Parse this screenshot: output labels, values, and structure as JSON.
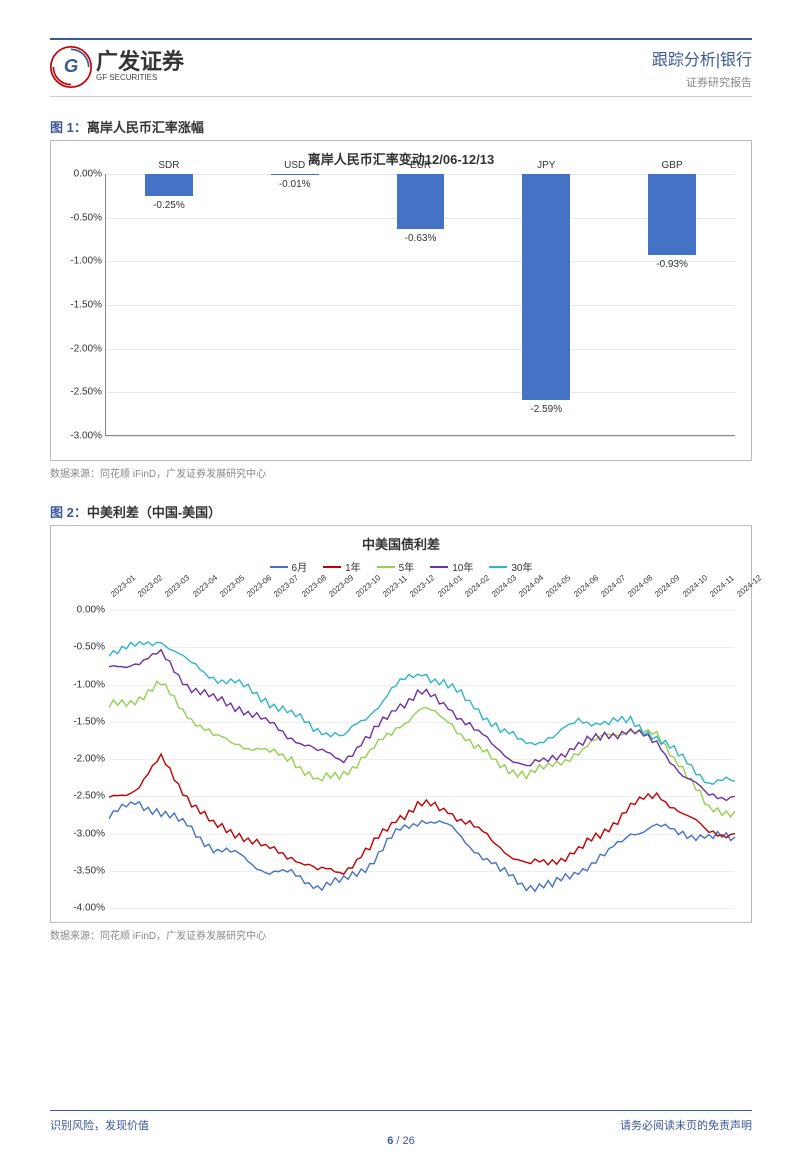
{
  "header": {
    "logo_cn": "广发证券",
    "logo_en": "GF SECURITIES",
    "title": "跟踪分析|银行",
    "subtitle": "证券研究报告"
  },
  "figure1": {
    "title_prefix": "图 1：",
    "title": "离岸人民币汇率涨幅",
    "chart_title": "离岸人民币汇率变动12/06-12/13",
    "categories": [
      "SDR",
      "USD",
      "EUR",
      "JPY",
      "GBP"
    ],
    "values": [
      -0.25,
      -0.01,
      -0.63,
      -2.59,
      -0.93
    ],
    "value_labels": [
      "-0.25%",
      "-0.01%",
      "-0.63%",
      "-2.59%",
      "-0.93%"
    ],
    "bar_color": "#4472c4",
    "y_ticks": [
      "0.00%",
      "-0.50%",
      "-1.00%",
      "-1.50%",
      "-2.00%",
      "-2.50%",
      "-3.00%"
    ],
    "y_min": -3.0,
    "y_max": 0.0,
    "source": "数据来源：同花顺 iFinD，广发证券发展研究中心",
    "grid_color": "#e6e6e6",
    "background_color": "#ffffff"
  },
  "figure2": {
    "title_prefix": "图 2：",
    "title": "中美利差（中国-美国）",
    "chart_title": "中美国债利差",
    "series": [
      {
        "name": "6月",
        "color": "#4472c4"
      },
      {
        "name": "1年",
        "color": "#c00000"
      },
      {
        "name": "5年",
        "color": "#92d050"
      },
      {
        "name": "10年",
        "color": "#7030a0"
      },
      {
        "name": "30年",
        "color": "#2fb5c9"
      }
    ],
    "x_labels": [
      "2023-01",
      "2023-02",
      "2023-03",
      "2023-04",
      "2023-05",
      "2023-06",
      "2023-07",
      "2023-08",
      "2023-09",
      "2023-10",
      "2023-11",
      "2023-12",
      "2024-01",
      "2024-02",
      "2024-03",
      "2024-04",
      "2024-05",
      "2024-06",
      "2024-07",
      "2024-08",
      "2024-09",
      "2024-10",
      "2024-11",
      "2024-12"
    ],
    "y_ticks": [
      "0.00%",
      "-0.50%",
      "-1.00%",
      "-1.50%",
      "-2.00%",
      "-2.50%",
      "-3.00%",
      "-3.50%",
      "-4.00%"
    ],
    "y_min": -4.0,
    "y_max": 0.0,
    "series_data": {
      "6月": [
        -2.75,
        -2.6,
        -2.7,
        -2.9,
        -3.2,
        -3.3,
        -3.5,
        -3.55,
        -3.7,
        -3.65,
        -3.4,
        -3.0,
        -2.8,
        -2.9,
        -3.2,
        -3.5,
        -3.7,
        -3.7,
        -3.5,
        -3.3,
        -3.0,
        -2.9,
        -3.0,
        -3.05
      ],
      "1年": [
        -2.55,
        -2.4,
        -2.0,
        -2.5,
        -2.9,
        -3.0,
        -3.2,
        -3.3,
        -3.5,
        -3.5,
        -3.2,
        -2.8,
        -2.6,
        -2.7,
        -2.9,
        -3.2,
        -3.4,
        -3.4,
        -3.2,
        -3.0,
        -2.6,
        -2.5,
        -2.7,
        -3.0
      ],
      "5年": [
        -1.3,
        -1.2,
        -1.0,
        -1.4,
        -1.7,
        -1.8,
        -1.9,
        -2.0,
        -2.3,
        -2.2,
        -1.9,
        -1.6,
        -1.3,
        -1.5,
        -1.8,
        -2.1,
        -2.2,
        -2.1,
        -1.9,
        -1.7,
        -1.6,
        -1.7,
        -2.1,
        -2.7
      ],
      "10年": [
        -0.8,
        -0.7,
        -0.6,
        -1.0,
        -1.2,
        -1.3,
        -1.5,
        -1.7,
        -1.9,
        -2.0,
        -1.7,
        -1.3,
        -1.1,
        -1.3,
        -1.6,
        -1.9,
        -2.1,
        -2.0,
        -1.8,
        -1.7,
        -1.6,
        -1.8,
        -2.2,
        -2.5
      ],
      "30年": [
        -0.55,
        -0.5,
        -0.4,
        -0.7,
        -0.9,
        -1.0,
        -1.2,
        -1.4,
        -1.6,
        -1.7,
        -1.4,
        -1.0,
        -0.85,
        -1.0,
        -1.3,
        -1.6,
        -1.8,
        -1.7,
        -1.5,
        -1.5,
        -1.5,
        -1.7,
        -2.0,
        -2.3
      ]
    },
    "source": "数据来源：同花顺 iFinD，广发证券发展研究中心",
    "background_color": "#ffffff"
  },
  "footer": {
    "left": "识别风险，发现价值",
    "right": "请务必阅读末页的免责声明",
    "page_current": "6",
    "page_sep": " / ",
    "page_total": "26"
  }
}
